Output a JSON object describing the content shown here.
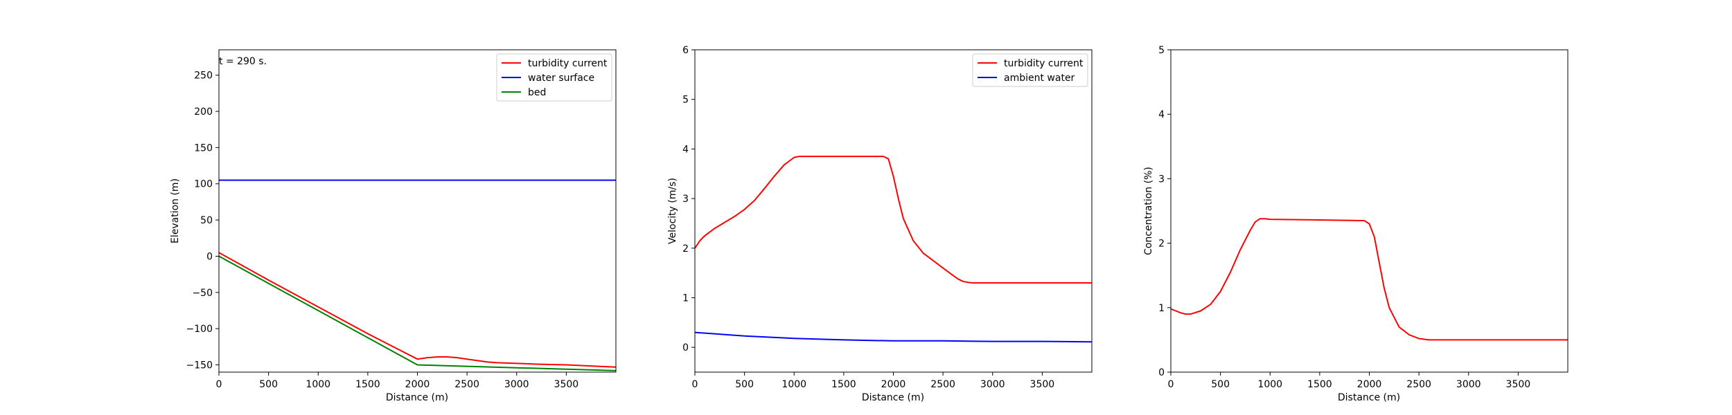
{
  "figure": {
    "time_label": "t = 290 s."
  },
  "chart_data": [
    {
      "type": "line",
      "xlabel": "Distance (m)",
      "ylabel": "Elevation (m)",
      "xlim": [
        0,
        4000
      ],
      "ylim": [
        -160,
        285
      ],
      "xticks": [
        "0",
        "500",
        "1000",
        "1500",
        "2000",
        "2500",
        "3000",
        "3500"
      ],
      "yticks": [
        "−150",
        "−100",
        "−50",
        "0",
        "50",
        "100",
        "150",
        "200",
        "250"
      ],
      "xtick_values": [
        0,
        500,
        1000,
        1500,
        2000,
        2500,
        3000,
        3500
      ],
      "ytick_values": [
        -150,
        -100,
        -50,
        0,
        50,
        100,
        150,
        200,
        250
      ],
      "legend_position": "top-right",
      "series": [
        {
          "name": "turbidity current",
          "color": "#ff0000",
          "x": [
            0,
            500,
            1000,
            1500,
            2000,
            2100,
            2200,
            2300,
            2400,
            2500,
            2600,
            2700,
            2800,
            3000,
            3200,
            3500,
            4000
          ],
          "y": [
            5,
            -33,
            -70,
            -107,
            -142,
            -140,
            -139,
            -139,
            -140,
            -142,
            -144,
            -146,
            -147,
            -148,
            -149,
            -150,
            -153
          ]
        },
        {
          "name": "water surface",
          "color": "#0000ff",
          "x": [
            0,
            4000
          ],
          "y": [
            105,
            105
          ]
        },
        {
          "name": "bed",
          "color": "#008000",
          "x": [
            0,
            500,
            1000,
            1500,
            2000,
            2500,
            3000,
            3500,
            4000
          ],
          "y": [
            0,
            -37.5,
            -75,
            -112.5,
            -150,
            -152,
            -154,
            -156,
            -158
          ]
        }
      ]
    },
    {
      "type": "line",
      "xlabel": "Distance (m)",
      "ylabel": "Velocity (m/s)",
      "xlim": [
        0,
        4000
      ],
      "ylim": [
        -0.5,
        6
      ],
      "xticks": [
        "0",
        "500",
        "1000",
        "1500",
        "2000",
        "2500",
        "3000",
        "3500"
      ],
      "yticks": [
        "0",
        "1",
        "2",
        "3",
        "4",
        "5",
        "6"
      ],
      "xtick_values": [
        0,
        500,
        1000,
        1500,
        2000,
        2500,
        3000,
        3500
      ],
      "ytick_values": [
        0,
        1,
        2,
        3,
        4,
        5,
        6
      ],
      "legend_position": "top-right",
      "series": [
        {
          "name": "turbidity current",
          "color": "#ff0000",
          "x": [
            0,
            50,
            100,
            200,
            300,
            400,
            500,
            600,
            700,
            800,
            900,
            1000,
            1050,
            1100,
            1500,
            1900,
            1950,
            2000,
            2050,
            2100,
            2200,
            2300,
            2400,
            2500,
            2600,
            2650,
            2700,
            2750,
            2800,
            3000,
            3500,
            4000
          ],
          "y": [
            2.0,
            2.15,
            2.25,
            2.4,
            2.52,
            2.64,
            2.78,
            2.96,
            3.2,
            3.45,
            3.68,
            3.83,
            3.85,
            3.85,
            3.85,
            3.85,
            3.8,
            3.45,
            3.0,
            2.6,
            2.15,
            1.9,
            1.75,
            1.6,
            1.45,
            1.38,
            1.33,
            1.31,
            1.3,
            1.3,
            1.3,
            1.3
          ]
        },
        {
          "name": "ambient water",
          "color": "#0000ff",
          "x": [
            0,
            500,
            1000,
            1500,
            2000,
            2500,
            3000,
            3500,
            4000
          ],
          "y": [
            0.3,
            0.23,
            0.18,
            0.15,
            0.13,
            0.13,
            0.12,
            0.12,
            0.11
          ]
        }
      ]
    },
    {
      "type": "line",
      "xlabel": "Distance (m)",
      "ylabel": "Concentration (%)",
      "xlim": [
        0,
        4000
      ],
      "ylim": [
        0,
        5
      ],
      "xticks": [
        "0",
        "500",
        "1000",
        "1500",
        "2000",
        "2500",
        "3000",
        "3500"
      ],
      "yticks": [
        "0",
        "1",
        "2",
        "3",
        "4",
        "5"
      ],
      "xtick_values": [
        0,
        500,
        1000,
        1500,
        2000,
        2500,
        3000,
        3500
      ],
      "ytick_values": [
        0,
        1,
        2,
        3,
        4,
        5
      ],
      "series": [
        {
          "name": "",
          "color": "#ff0000",
          "x": [
            0,
            50,
            100,
            150,
            200,
            300,
            400,
            500,
            600,
            700,
            800,
            850,
            900,
            950,
            1000,
            1500,
            1950,
            2000,
            2050,
            2100,
            2150,
            2200,
            2300,
            2400,
            2500,
            2600,
            2700,
            3000,
            3500,
            4000
          ],
          "y": [
            0.98,
            0.95,
            0.92,
            0.9,
            0.9,
            0.95,
            1.05,
            1.25,
            1.55,
            1.9,
            2.2,
            2.33,
            2.38,
            2.38,
            2.37,
            2.36,
            2.35,
            2.3,
            2.1,
            1.7,
            1.3,
            1.0,
            0.7,
            0.58,
            0.52,
            0.5,
            0.5,
            0.5,
            0.5,
            0.5
          ]
        }
      ]
    }
  ]
}
